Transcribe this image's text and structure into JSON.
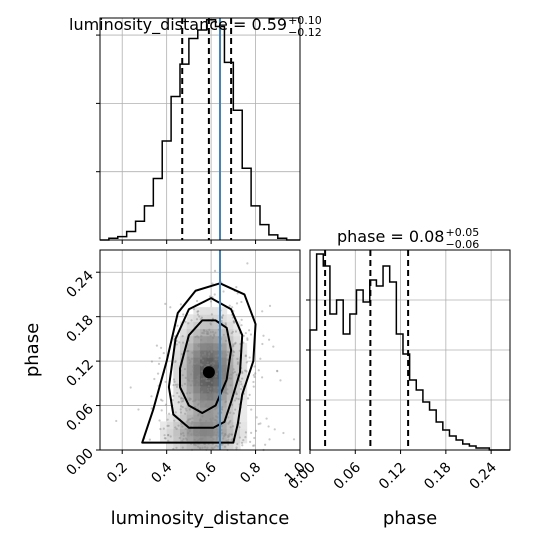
{
  "chart_data": [
    {
      "type": "histogram",
      "panel": "luminosity_distance marginal",
      "title": {
        "text": "luminosity_distance = 0.59",
        "sup": "+0.10",
        "sub": "−0.12"
      },
      "xlim": [
        0.1,
        1.0
      ],
      "bin_edges": [
        0.1,
        0.14,
        0.18,
        0.22,
        0.26,
        0.3,
        0.34,
        0.38,
        0.42,
        0.46,
        0.5,
        0.54,
        0.58,
        0.62,
        0.66,
        0.7,
        0.74,
        0.78,
        0.82,
        0.86,
        0.9,
        0.94,
        0.98,
        1.0
      ],
      "counts": [
        0,
        1,
        2,
        5,
        11,
        20,
        36,
        58,
        84,
        103,
        118,
        123,
        129,
        125,
        104,
        76,
        42,
        20,
        9,
        3,
        1,
        0,
        0
      ],
      "ymax": 130,
      "quantiles": [
        0.47,
        0.59,
        0.69
      ],
      "truth": 0.64,
      "colors": {
        "hist": "#000000",
        "truth": "#4682b4",
        "grid": "#b0b0b0"
      }
    },
    {
      "type": "histogram",
      "panel": "phase marginal",
      "title": {
        "text": "phase = 0.08",
        "sup": "+0.05",
        "sub": "−0.06"
      },
      "xlim": [
        0.0,
        0.265
      ],
      "xlabel": "phase",
      "xticks": [
        "0.00",
        "0.06",
        "0.12",
        "0.18",
        "0.24"
      ],
      "bin_edges": [
        0.0,
        0.0088,
        0.0176,
        0.0264,
        0.0352,
        0.044,
        0.0528,
        0.0616,
        0.0704,
        0.0792,
        0.088,
        0.0968,
        0.1056,
        0.1144,
        0.1232,
        0.132,
        0.1408,
        0.1496,
        0.1584,
        0.1672,
        0.176,
        0.1848,
        0.1936,
        0.2024,
        0.2112,
        0.22,
        0.2288,
        0.2376,
        0.2464,
        0.2552,
        0.265
      ],
      "counts": [
        60,
        98,
        92,
        68,
        75,
        58,
        68,
        80,
        74,
        85,
        82,
        92,
        84,
        58,
        48,
        35,
        30,
        24,
        20,
        14,
        10,
        7,
        5,
        3,
        2,
        1,
        1,
        0,
        0,
        0
      ],
      "ymax": 100,
      "quantiles": [
        0.02,
        0.08,
        0.13
      ]
    },
    {
      "type": "2d_density",
      "panel": "phase vs luminosity_distance",
      "xlabel": "luminosity_distance",
      "ylabel": "phase",
      "xlim": [
        0.1,
        1.0
      ],
      "ylim": [
        0.0,
        0.27
      ],
      "xticks": [
        "0.2",
        "0.4",
        "0.6",
        "0.8",
        "1.0"
      ],
      "yticks": [
        "0.00",
        "0.06",
        "0.12",
        "0.18",
        "0.24"
      ],
      "peak": {
        "x": 0.59,
        "y": 0.105
      },
      "truth_x": 0.64,
      "contours": [
        [
          [
            0.46,
            0.11
          ],
          [
            0.5,
            0.155
          ],
          [
            0.56,
            0.175
          ],
          [
            0.62,
            0.175
          ],
          [
            0.67,
            0.165
          ],
          [
            0.69,
            0.135
          ],
          [
            0.67,
            0.095
          ],
          [
            0.62,
            0.06
          ],
          [
            0.56,
            0.05
          ],
          [
            0.5,
            0.06
          ],
          [
            0.46,
            0.085
          ]
        ],
        [
          [
            0.41,
            0.085
          ],
          [
            0.44,
            0.15
          ],
          [
            0.5,
            0.19
          ],
          [
            0.6,
            0.205
          ],
          [
            0.69,
            0.19
          ],
          [
            0.74,
            0.155
          ],
          [
            0.73,
            0.105
          ],
          [
            0.69,
            0.065
          ],
          [
            0.66,
            0.038
          ],
          [
            0.61,
            0.03
          ],
          [
            0.5,
            0.03
          ],
          [
            0.43,
            0.048
          ]
        ],
        [
          [
            0.29,
            0.01
          ],
          [
            0.34,
            0.055
          ],
          [
            0.4,
            0.12
          ],
          [
            0.45,
            0.185
          ],
          [
            0.53,
            0.215
          ],
          [
            0.64,
            0.225
          ],
          [
            0.75,
            0.21
          ],
          [
            0.8,
            0.17
          ],
          [
            0.79,
            0.12
          ],
          [
            0.74,
            0.075
          ],
          [
            0.72,
            0.035
          ],
          [
            0.7,
            0.01
          ]
        ]
      ]
    }
  ]
}
